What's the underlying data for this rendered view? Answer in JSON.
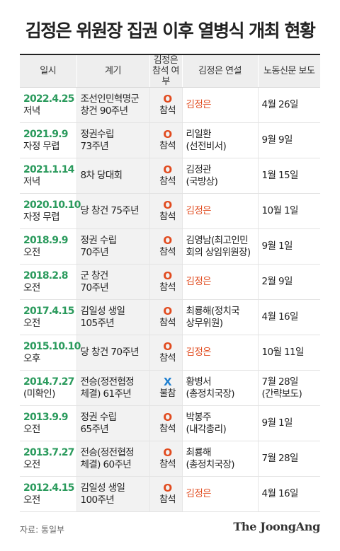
{
  "title": "김정은 위원장 집권 이후 열병식 개최 현황",
  "colors": {
    "date": "#2a9a5c",
    "attend_o": "#e14b1f",
    "attend_x": "#1e7fd0",
    "speaker_kim": "#e14b1f",
    "header_bg": "#eeeeee",
    "occasion_bg": "#f2f2f2"
  },
  "headers": {
    "date": "일시",
    "occasion": "계기",
    "attend": [
      "김정은",
      "참석 여부"
    ],
    "speech": "김정은 연설",
    "newspaper": "노동신문 보도"
  },
  "rows": [
    {
      "date": "2022.4.25",
      "time": "저녁",
      "occasion": [
        "조선인민혁명군",
        "창건 90주년"
      ],
      "mark": "O",
      "attend": "참석",
      "speech": [
        "김정은"
      ],
      "speech_kim": true,
      "news": [
        "4월 26일"
      ]
    },
    {
      "date": "2021.9.9",
      "time": "자정 무렵",
      "occasion": [
        "정권수립",
        "73주년"
      ],
      "mark": "O",
      "attend": "참석",
      "speech": [
        "리일환",
        "(선전비서)"
      ],
      "speech_kim": false,
      "news": [
        "9월 9일"
      ]
    },
    {
      "date": "2021.1.14",
      "time": "저녁",
      "occasion": [
        "8차 당대회"
      ],
      "mark": "O",
      "attend": "참석",
      "speech": [
        "김정관",
        "(국방상)"
      ],
      "speech_kim": false,
      "news": [
        "1월 15일"
      ]
    },
    {
      "date": "2020.10.10",
      "time": "자정 무렵",
      "occasion": [
        "당 창건 75주년"
      ],
      "mark": "O",
      "attend": "참석",
      "speech": [
        "김정은"
      ],
      "speech_kim": true,
      "news": [
        "10월 1일"
      ]
    },
    {
      "date": "2018.9.9",
      "time": "오전",
      "occasion": [
        "정권 수립",
        "70주년"
      ],
      "mark": "O",
      "attend": "참석",
      "speech": [
        "김영남(최고인민",
        "회의 상임위원장)"
      ],
      "speech_kim": false,
      "news": [
        "9월 1일"
      ]
    },
    {
      "date": "2018.2.8",
      "time": "오전",
      "occasion": [
        "군 창건",
        "70주년"
      ],
      "mark": "O",
      "attend": "참석",
      "speech": [
        "김정은"
      ],
      "speech_kim": true,
      "news": [
        "2월 9일"
      ]
    },
    {
      "date": "2017.4.15",
      "time": "오전",
      "occasion": [
        "김일성 생일",
        "105주년"
      ],
      "mark": "O",
      "attend": "참석",
      "speech": [
        "최룡해(정치국",
        "상무위원)"
      ],
      "speech_kim": false,
      "news": [
        "4월 16일"
      ]
    },
    {
      "date": "2015.10.10",
      "time": "오후",
      "occasion": [
        "당 창건 70주년"
      ],
      "mark": "O",
      "attend": "참석",
      "speech": [
        "김정은"
      ],
      "speech_kim": true,
      "news": [
        "10월 11일"
      ]
    },
    {
      "date": "2014.7.27",
      "time": "(미확인)",
      "occasion": [
        "전승(정전협정",
        "체결) 61주년"
      ],
      "mark": "X",
      "attend": "불참",
      "speech": [
        "황병서",
        "(총정치국장)"
      ],
      "speech_kim": false,
      "news": [
        "7월 28일",
        "(간략보도)"
      ]
    },
    {
      "date": "2013.9.9",
      "time": "오전",
      "occasion": [
        "정권 수립",
        "65주년"
      ],
      "mark": "O",
      "attend": "참석",
      "speech": [
        "박봉주",
        "(내각총리)"
      ],
      "speech_kim": false,
      "news": [
        "9월 1일"
      ]
    },
    {
      "date": "2013.7.27",
      "time": "오전",
      "occasion": [
        "전승(정전협정",
        "체결) 60주년"
      ],
      "mark": "O",
      "attend": "참석",
      "speech": [
        "최룡해",
        "(총정치국장)"
      ],
      "speech_kim": false,
      "news": [
        "7월 28일"
      ]
    },
    {
      "date": "2012.4.15",
      "time": "오전",
      "occasion": [
        "김일성 생일",
        "100주년"
      ],
      "mark": "O",
      "attend": "참석",
      "speech": [
        "김정은"
      ],
      "speech_kim": true,
      "news": [
        "4월 16일"
      ]
    }
  ],
  "source": "자료: 통일부",
  "logo": "The JoongAng"
}
